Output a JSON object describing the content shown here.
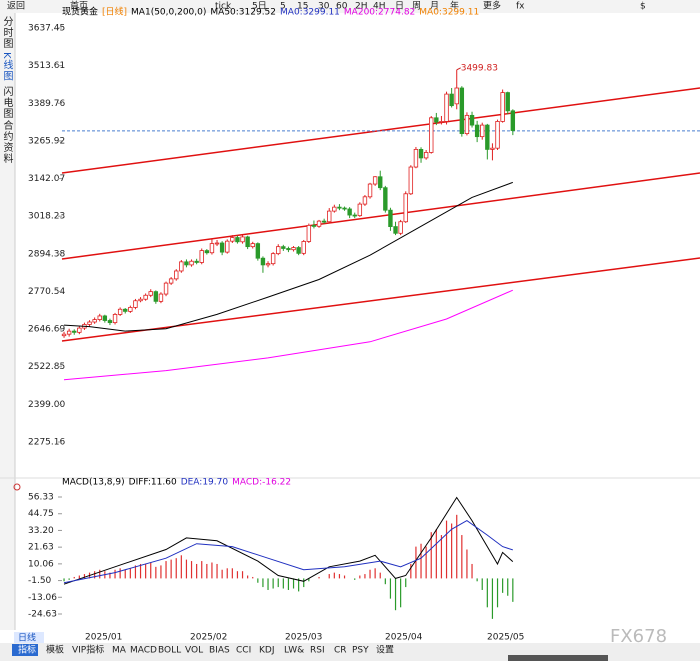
{
  "toolbar": {
    "back": "返回",
    "home": "首页",
    "items": [
      "tick",
      "5日",
      "5",
      "15",
      "30",
      "60",
      "2H",
      "4H",
      "日",
      "周",
      "月",
      "年",
      "更多",
      "fx",
      "$"
    ]
  },
  "sidebar": [
    "分时图",
    "K线图",
    "闪电图",
    "合约资料"
  ],
  "bottom": {
    "period": "日线",
    "tabs": [
      "指标",
      "模板",
      "VIP指标",
      "MA",
      "MACD",
      "BOLL",
      "VOL",
      "BIAS",
      "CCI",
      "KDJ",
      "LW&",
      "RSI",
      "CR",
      "PSY",
      "设置"
    ],
    "watermark": "FX678",
    "month_labels": [
      "2025/01",
      "2025/02",
      "2025/03",
      "2025/04",
      "2025/05"
    ]
  },
  "chart_data": [
    {
      "type": "candlestick",
      "title": "现货黄金",
      "period": "[日线]",
      "indicator": "MA1(50,0,200,0)",
      "legend": [
        {
          "text": "MA50:3129.52",
          "color": "#000000"
        },
        {
          "text": "MA0:3299.11",
          "color": "#2030c0"
        },
        {
          "text": "MA200:2774.82",
          "color": "#e000e0"
        },
        {
          "text": "MA0:3299.11",
          "color": "#f08000"
        }
      ],
      "up_color": "#e02020",
      "down_color": "#2a9a2a",
      "open": [
        2625,
        2630,
        2640,
        2636,
        2650,
        2662,
        2670,
        2678,
        2690,
        2675,
        2668,
        2695,
        2712,
        2705,
        2718,
        2740,
        2745,
        2758,
        2770,
        2738,
        2762,
        2798,
        2812,
        2838,
        2868,
        2858,
        2870,
        2866,
        2905,
        2898,
        2928,
        2930,
        2900,
        2936,
        2948,
        2934,
        2950,
        2918,
        2928,
        2880,
        2858,
        2862,
        2895,
        2918,
        2912,
        2908,
        2915,
        2896,
        2935,
        2988,
        2985,
        3002,
        3000,
        3035,
        3048,
        3045,
        3042,
        3022,
        3020,
        3058,
        3082,
        3124,
        3148,
        3112,
        3038,
        2984,
        2962,
        3000,
        3092,
        3180,
        3238,
        3210,
        3228,
        3342,
        3328,
        3330,
        3420,
        3388,
        3440,
        3290,
        3350,
        3318,
        3280,
        3318,
        3238,
        3242,
        3330,
        3425,
        3365
      ],
      "high": [
        2638,
        2648,
        2646,
        2656,
        2668,
        2676,
        2685,
        2697,
        2694,
        2681,
        2700,
        2718,
        2716,
        2724,
        2746,
        2752,
        2764,
        2778,
        2774,
        2768,
        2803,
        2818,
        2844,
        2874,
        2876,
        2876,
        2878,
        2912,
        2910,
        2942,
        2940,
        2936,
        2942,
        2956,
        2954,
        2956,
        2954,
        2934,
        2932,
        2886,
        2870,
        2900,
        2926,
        2924,
        2918,
        2920,
        2920,
        2940,
        2994,
        3004,
        3006,
        3010,
        3045,
        3056,
        3058,
        3050,
        3048,
        3030,
        3064,
        3088,
        3128,
        3150,
        3168,
        3118,
        3046,
        3000,
        3006,
        3100,
        3186,
        3246,
        3245,
        3236,
        3348,
        3358,
        3348,
        3428,
        3440,
        3499.83,
        3446,
        3360,
        3362,
        3332,
        3326,
        3322,
        3258,
        3336,
        3435,
        3428,
        3370
      ],
      "low": [
        2618,
        2622,
        2628,
        2630,
        2644,
        2655,
        2664,
        2672,
        2668,
        2660,
        2662,
        2690,
        2698,
        2700,
        2712,
        2735,
        2740,
        2752,
        2730,
        2732,
        2755,
        2792,
        2806,
        2832,
        2850,
        2852,
        2860,
        2860,
        2892,
        2892,
        2920,
        2890,
        2895,
        2930,
        2928,
        2928,
        2910,
        2912,
        2872,
        2832,
        2850,
        2856,
        2890,
        2904,
        2900,
        2902,
        2890,
        2890,
        2930,
        2978,
        2980,
        2994,
        2995,
        3030,
        3038,
        3036,
        3012,
        3012,
        3016,
        3052,
        3076,
        3118,
        3104,
        3030,
        2970,
        2956,
        2956,
        2996,
        3088,
        3176,
        3194,
        3204,
        3224,
        3318,
        3320,
        3320,
        3376,
        3370,
        3280,
        3284,
        3310,
        3262,
        3270,
        3205,
        3202,
        3236,
        3326,
        3354,
        3285
      ],
      "close": [
        2630,
        2640,
        2636,
        2650,
        2662,
        2670,
        2678,
        2690,
        2675,
        2668,
        2695,
        2712,
        2705,
        2718,
        2740,
        2745,
        2758,
        2770,
        2738,
        2762,
        2798,
        2812,
        2838,
        2868,
        2858,
        2870,
        2866,
        2905,
        2898,
        2928,
        2930,
        2900,
        2936,
        2948,
        2934,
        2950,
        2918,
        2928,
        2880,
        2858,
        2862,
        2895,
        2918,
        2912,
        2908,
        2915,
        2896,
        2935,
        2988,
        2985,
        3002,
        3000,
        3035,
        3048,
        3045,
        3042,
        3022,
        3020,
        3058,
        3082,
        3124,
        3148,
        3112,
        3038,
        2984,
        2962,
        3000,
        3092,
        3180,
        3238,
        3210,
        3228,
        3342,
        3328,
        3330,
        3420,
        3382,
        3440,
        3290,
        3350,
        3318,
        3280,
        3318,
        3238,
        3242,
        3330,
        3425,
        3365,
        3300
      ],
      "lines": [
        {
          "name": "MA50",
          "color": "#000000",
          "x": [
            0,
            5,
            12,
            20,
            30,
            40,
            50,
            60,
            70,
            80,
            88
          ],
          "values": [
            2660,
            2655,
            2640,
            2648,
            2695,
            2752,
            2810,
            2890,
            2985,
            3080,
            3129.52
          ]
        },
        {
          "name": "MA200",
          "color": "#ff00ff",
          "x": [
            0,
            20,
            40,
            60,
            75,
            88
          ],
          "values": [
            2480,
            2510,
            2552,
            2605,
            2680,
            2774.82
          ]
        }
      ],
      "price_line": 3299.11,
      "price_line_color": "#4a7fd0",
      "peak_index": 77,
      "xlim": [
        -0.4,
        124.7
      ],
      "ylim": [
        2166.6,
        3670.4
      ],
      "yticks": [
        3637.45,
        3513.61,
        3389.76,
        3265.92,
        3142.07,
        3018.23,
        2894.38,
        2770.54,
        2646.69,
        2522.85,
        {
          "value": 2399,
          "label": "2399.00"
        },
        2275.16
      ]
    },
    {
      "type": "macd",
      "title": "MACD(13,8,9)",
      "legend": [
        {
          "text": "DIFF:11.60",
          "color": "#000000"
        },
        {
          "text": "DEA:19.70",
          "color": "#2030c0"
        },
        {
          "text": "MACD:-16.22",
          "color": "#e000e0"
        }
      ],
      "up_color": "#e03030",
      "down_color": "#2a9a2a",
      "values": [
        -2,
        -1,
        1,
        2,
        3,
        4,
        5,
        6,
        5,
        4,
        6,
        7,
        6,
        7,
        9,
        10,
        10,
        11,
        8,
        9,
        12,
        13,
        14,
        16,
        13,
        12,
        10,
        12,
        10,
        11,
        10,
        6,
        7,
        7,
        5,
        5,
        2,
        1,
        -3,
        -6,
        -8,
        -7,
        -6,
        -7,
        -8,
        -7,
        -9,
        -6,
        -2,
        0,
        1,
        0,
        3,
        4,
        3,
        2,
        0,
        -1,
        2,
        3,
        6,
        7,
        4,
        -4,
        -14,
        -22,
        -20,
        -6,
        10,
        22,
        24,
        22,
        32,
        34,
        30,
        40,
        38,
        44,
        30,
        20,
        10,
        -2,
        -8,
        -20,
        -28,
        -20,
        -10,
        -12,
        -16.22
      ],
      "lines": [
        {
          "name": "DIFF",
          "color": "#000000",
          "x": [
            0,
            10,
            20,
            24,
            30,
            38,
            42,
            47,
            52,
            58,
            61,
            65,
            67,
            72,
            77,
            80,
            83,
            85,
            86,
            88
          ],
          "values": [
            -4,
            8,
            20,
            28,
            26,
            12,
            2,
            -2,
            8,
            12,
            16,
            0,
            2,
            28,
            56,
            40,
            22,
            10,
            18,
            11.6
          ]
        },
        {
          "name": "DEA",
          "color": "#2030c0",
          "x": [
            0,
            10,
            20,
            26,
            33,
            40,
            47,
            55,
            62,
            66,
            70,
            76,
            79,
            83,
            86,
            88
          ],
          "values": [
            -3,
            4,
            14,
            24,
            22,
            14,
            6,
            8,
            12,
            8,
            14,
            34,
            40,
            30,
            22,
            19.7
          ]
        }
      ],
      "xlim": [
        -0.4,
        124.7
      ],
      "ylim": [
        -35.7,
        62.56
      ],
      "yticks": [
        56.33,
        44.75,
        {
          "value": 33.2,
          "label": "33.20"
        },
        21.63,
        10.06,
        {
          "value": -1.5,
          "label": "-1.50"
        },
        -13.06,
        -24.63
      ]
    }
  ]
}
